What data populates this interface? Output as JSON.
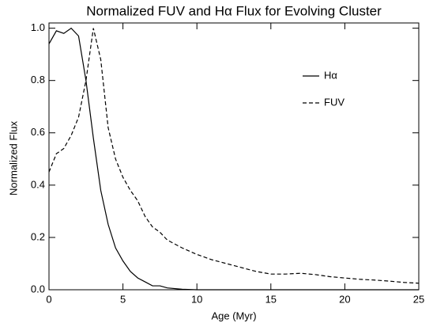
{
  "chart_data": {
    "type": "line",
    "title": "Normalized FUV and Hα Flux for Evolving Cluster",
    "x_label": "Age (Myr)",
    "y_label": "Normalized Flux",
    "x": [
      0,
      0.5,
      1,
      1.5,
      2,
      2.5,
      3,
      3.5,
      4,
      4.5,
      5,
      5.5,
      6,
      6.5,
      7,
      7.5,
      8,
      9,
      10,
      11,
      12,
      13,
      14,
      15,
      16,
      17,
      18,
      19,
      20,
      21,
      22,
      23,
      24,
      25
    ],
    "series": [
      {
        "name": "Hα",
        "color": "#000000",
        "dash": "solid",
        "values": [
          0.94,
          0.99,
          0.98,
          1.0,
          0.97,
          0.8,
          0.58,
          0.38,
          0.25,
          0.16,
          0.11,
          0.07,
          0.045,
          0.03,
          0.015,
          0.015,
          0.007,
          0.002,
          0,
          0,
          0,
          0,
          0,
          0,
          0,
          0,
          0,
          0,
          0,
          0,
          0,
          0,
          0,
          0
        ]
      },
      {
        "name": "FUV",
        "color": "#000000",
        "dash": "dashed",
        "values": [
          0.45,
          0.52,
          0.54,
          0.59,
          0.66,
          0.8,
          1.0,
          0.88,
          0.62,
          0.5,
          0.43,
          0.38,
          0.34,
          0.28,
          0.24,
          0.22,
          0.19,
          0.16,
          0.135,
          0.115,
          0.1,
          0.085,
          0.07,
          0.06,
          0.06,
          0.063,
          0.058,
          0.05,
          0.045,
          0.04,
          0.037,
          0.033,
          0.028,
          0.025
        ]
      }
    ],
    "xlim": [
      0,
      25
    ],
    "xticks": [
      0,
      5,
      10,
      15,
      20,
      25
    ],
    "ylim": [
      0,
      1.02
    ],
    "yticks": [
      {
        "value": 0,
        "label": "0.0"
      },
      0.2,
      0.4,
      0.6,
      0.8,
      {
        "value": 1,
        "label": "1.0"
      }
    ],
    "grid": false,
    "legend": "upper right"
  }
}
